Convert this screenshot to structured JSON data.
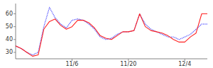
{
  "chart_data": {
    "type": "line",
    "x": [
      0,
      1,
      2,
      3,
      4,
      5,
      6,
      7,
      8,
      9,
      10,
      11,
      12,
      13,
      14,
      15,
      16,
      17,
      18,
      19,
      20,
      21,
      22,
      23,
      24,
      25,
      26,
      27,
      28,
      29,
      30,
      31,
      32,
      33,
      34
    ],
    "series": [
      {
        "color": "#5555ff",
        "line_style": "dotted",
        "values": [
          35,
          33,
          30,
          28,
          30,
          50,
          65,
          57,
          52,
          49,
          55,
          56,
          55,
          52,
          48,
          42,
          40,
          41,
          44,
          46,
          46,
          47,
          60,
          52,
          48,
          46,
          44,
          42,
          42,
          40,
          42,
          44,
          48,
          52,
          52
        ]
      },
      {
        "color": "#ff2222",
        "line_style": "solid",
        "values": [
          35,
          33,
          30,
          27,
          28,
          48,
          54,
          56,
          51,
          48,
          50,
          55,
          55,
          53,
          49,
          43,
          41,
          40,
          43,
          46,
          46,
          47,
          60,
          50,
          47,
          46,
          45,
          43,
          40,
          38,
          38,
          42,
          45,
          60,
          60
        ]
      }
    ],
    "xlim": [
      0,
      34
    ],
    "xticks": [
      {
        "value": 10,
        "label": "11/6"
      },
      {
        "value": 20,
        "label": "11/20"
      },
      {
        "value": 30,
        "label": "12/4"
      }
    ],
    "ylim": [
      25,
      68
    ],
    "yticks": [
      30,
      40,
      50,
      60
    ],
    "grid": false
  }
}
